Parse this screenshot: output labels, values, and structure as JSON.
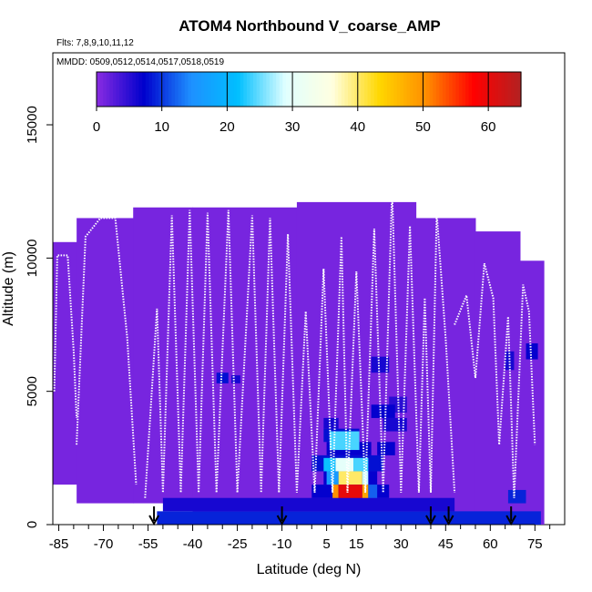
{
  "chart_data": {
    "type": "heatmap",
    "title": "ATOM4 Northbound V_coarse_AMP",
    "subtitle_flights": "Flts: 7,8,9,10,11,12",
    "subtitle_dates": "MMDD: 0509,0512,0514,0517,0518,0519",
    "xlabel": "Latitude (deg N)",
    "ylabel": "Altitude (m)",
    "xlim": [
      -87,
      85
    ],
    "ylim": [
      0,
      17700
    ],
    "x_ticks": [
      -85,
      -70,
      -55,
      -40,
      -25,
      -10,
      5,
      15,
      30,
      45,
      60,
      75
    ],
    "x_ticks_minor": [
      -80,
      -75,
      -65,
      -60,
      -50,
      -45,
      -35,
      -30,
      -20,
      -15,
      -5,
      0,
      10,
      20,
      25,
      35,
      40,
      50,
      55,
      65,
      70,
      80
    ],
    "y_ticks": [
      0,
      5000,
      10000,
      15000
    ],
    "colorbar": {
      "min": 0,
      "max": 65,
      "ticks": [
        0,
        10,
        20,
        30,
        40,
        50,
        60
      ],
      "colors": [
        "#8a2be2",
        "#0000cd",
        "#1e90ff",
        "#00bfff",
        "#e0ffff",
        "#ffffe0",
        "#ffd700",
        "#ff8c00",
        "#ff0000",
        "#b22222"
      ]
    },
    "background_value": 1,
    "coverage": [
      {
        "x0": -87,
        "x1": -79,
        "y0": 1500,
        "y1": 10600
      },
      {
        "x0": -79,
        "x1": -60,
        "y0": 800,
        "y1": 11500
      },
      {
        "x0": -60,
        "x1": -40,
        "y0": 800,
        "y1": 11900
      },
      {
        "x0": -40,
        "x1": -5,
        "y0": 0,
        "y1": 11900
      },
      {
        "x0": -5,
        "x1": 35,
        "y0": 0,
        "y1": 12100
      },
      {
        "x0": 35,
        "x1": 55,
        "y0": 0,
        "y1": 11500
      },
      {
        "x0": 55,
        "x1": 70,
        "y0": 0,
        "y1": 11000
      },
      {
        "x0": 70,
        "x1": 78,
        "y0": 0,
        "y1": 9900
      }
    ],
    "cells": [
      {
        "x0": -52,
        "x1": 77,
        "y0": 0,
        "y1": 500,
        "v": 9
      },
      {
        "x0": -50,
        "x1": 48,
        "y0": 500,
        "y1": 1000,
        "v": 6
      },
      {
        "x0": -32,
        "x1": -28,
        "y0": 5300,
        "y1": 5700,
        "v": 8
      },
      {
        "x0": -27,
        "x1": -24,
        "y0": 5300,
        "y1": 5600,
        "v": 6
      },
      {
        "x0": 66,
        "x1": 72,
        "y0": 800,
        "y1": 1300,
        "v": 9
      },
      {
        "x0": 72,
        "x1": 76,
        "y0": 6200,
        "y1": 6800,
        "v": 7
      },
      {
        "x0": 65,
        "x1": 68,
        "y0": 5800,
        "y1": 6500,
        "v": 6
      },
      {
        "x0": 20,
        "x1": 26,
        "y0": 5700,
        "y1": 6300,
        "v": 6
      },
      {
        "x0": 26,
        "x1": 32,
        "y0": 4200,
        "y1": 4800,
        "v": 5
      },
      {
        "x0": 0,
        "x1": 26,
        "y0": 1000,
        "y1": 1500,
        "v": 7
      },
      {
        "x0": 4,
        "x1": 22,
        "y0": 1500,
        "y1": 2000,
        "v": 7
      },
      {
        "x0": 0,
        "x1": 24,
        "y0": 2000,
        "y1": 2600,
        "v": 8
      },
      {
        "x0": 5,
        "x1": 20,
        "y0": 2600,
        "y1": 3100,
        "v": 7
      },
      {
        "x0": 4,
        "x1": 16,
        "y0": 3100,
        "y1": 3600,
        "v": 8
      },
      {
        "x0": 4,
        "x1": 9,
        "y0": 3600,
        "y1": 4000,
        "v": 6
      },
      {
        "x0": 20,
        "x1": 28,
        "y0": 4000,
        "y1": 4500,
        "v": 7
      },
      {
        "x0": 24,
        "x1": 32,
        "y0": 3500,
        "y1": 4000,
        "v": 6
      },
      {
        "x0": 22,
        "x1": 28,
        "y0": 2600,
        "y1": 3100,
        "v": 7
      },
      {
        "x0": 6,
        "x1": 16,
        "y0": 2800,
        "y1": 3500,
        "v": 24
      },
      {
        "x0": 4,
        "x1": 8,
        "y0": 2000,
        "y1": 2500,
        "v": 22
      },
      {
        "x0": 8,
        "x1": 14,
        "y0": 2000,
        "y1": 2500,
        "v": 30
      },
      {
        "x0": 14,
        "x1": 19,
        "y0": 2000,
        "y1": 2500,
        "v": 24
      },
      {
        "x0": 5,
        "x1": 9,
        "y0": 1500,
        "y1": 2000,
        "v": 16
      },
      {
        "x0": 9,
        "x1": 17,
        "y0": 1500,
        "y1": 2000,
        "v": 40
      },
      {
        "x0": 17,
        "x1": 19,
        "y0": 1500,
        "y1": 2000,
        "v": 28
      },
      {
        "x0": 7,
        "x1": 9,
        "y0": 1000,
        "y1": 1500,
        "v": 50
      },
      {
        "x0": 9,
        "x1": 17,
        "y0": 1000,
        "y1": 1500,
        "v": 60
      },
      {
        "x0": 17,
        "x1": 19,
        "y0": 1000,
        "y1": 1500,
        "v": 48
      },
      {
        "x0": 19,
        "x1": 22,
        "y0": 1000,
        "y1": 1500,
        "v": 12
      }
    ],
    "flight_tracks": [
      {
        "points": [
          [
            -86.5,
            5000
          ],
          [
            -85.5,
            10100
          ],
          [
            -82,
            10100
          ],
          [
            -80,
            6500
          ],
          [
            -79,
            4000
          ]
        ]
      },
      {
        "points": [
          [
            -79,
            3000
          ],
          [
            -76,
            10800
          ],
          [
            -71,
            11500
          ],
          [
            -66,
            11500
          ],
          [
            -62,
            7000
          ],
          [
            -59,
            1500
          ]
        ]
      },
      {
        "points": [
          [
            -56,
            1000
          ],
          [
            -52,
            8100
          ],
          [
            -50,
            1200
          ],
          [
            -47,
            11600
          ],
          [
            -44,
            1200
          ],
          [
            -41,
            11800
          ],
          [
            -38,
            1200
          ],
          [
            -35,
            11700
          ],
          [
            -32,
            1200
          ],
          [
            -28,
            11800
          ],
          [
            -25,
            1200
          ],
          [
            -20,
            11600
          ],
          [
            -17,
            1200
          ],
          [
            -14,
            11500
          ],
          [
            -11,
            1200
          ],
          [
            -8,
            10900
          ],
          [
            -5,
            1200
          ],
          [
            -2,
            8000
          ],
          [
            1,
            1200
          ]
        ]
      },
      {
        "points": [
          [
            1,
            1200
          ],
          [
            4,
            9600
          ],
          [
            7,
            1200
          ],
          [
            10,
            10800
          ],
          [
            12,
            1200
          ],
          [
            15,
            9500
          ],
          [
            18,
            1200
          ],
          [
            21,
            11100
          ],
          [
            24,
            1200
          ],
          [
            27,
            12600
          ],
          [
            30,
            1200
          ],
          [
            33,
            11200
          ],
          [
            36,
            1200
          ],
          [
            38,
            8500
          ],
          [
            40,
            1200
          ],
          [
            42,
            11700
          ],
          [
            45,
            7000
          ],
          [
            48,
            1200
          ]
        ]
      },
      {
        "points": [
          [
            48,
            7500
          ],
          [
            52,
            8600
          ],
          [
            55,
            5500
          ],
          [
            58,
            9800
          ],
          [
            61,
            8500
          ],
          [
            63,
            3000
          ],
          [
            66,
            7800
          ],
          [
            68,
            1000
          ],
          [
            71,
            9000
          ],
          [
            73,
            8000
          ],
          [
            75,
            3000
          ]
        ]
      }
    ],
    "markers_x": [
      -53,
      -10,
      40,
      46,
      67
    ]
  }
}
